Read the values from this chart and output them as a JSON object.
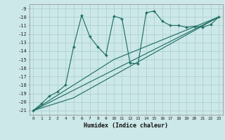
{
  "xlabel": "Humidex (Indice chaleur)",
  "bg_color": "#cce8e8",
  "grid_color": "#aacccc",
  "line_color": "#1a6b60",
  "xlim": [
    -0.5,
    23.5
  ],
  "ylim": [
    -21.5,
    -8.5
  ],
  "xticks": [
    0,
    1,
    2,
    3,
    4,
    5,
    6,
    7,
    8,
    9,
    10,
    11,
    12,
    13,
    14,
    15,
    16,
    17,
    18,
    19,
    20,
    21,
    22,
    23
  ],
  "yticks": [
    -9,
    -10,
    -11,
    -12,
    -13,
    -14,
    -15,
    -16,
    -17,
    -18,
    -19,
    -20,
    -21
  ],
  "series": [
    [
      0,
      -21.0
    ],
    [
      1,
      -20.2
    ],
    [
      2,
      -19.3
    ],
    [
      3,
      -18.8
    ],
    [
      4,
      -18.0
    ],
    [
      5,
      -13.5
    ],
    [
      6,
      -9.8
    ],
    [
      7,
      -12.3
    ],
    [
      8,
      -13.5
    ],
    [
      9,
      -14.5
    ],
    [
      10,
      -9.9
    ],
    [
      11,
      -10.2
    ],
    [
      12,
      -15.4
    ],
    [
      13,
      -15.5
    ],
    [
      14,
      -9.5
    ],
    [
      15,
      -9.3
    ],
    [
      16,
      -10.5
    ],
    [
      17,
      -11.0
    ],
    [
      18,
      -11.0
    ],
    [
      19,
      -11.2
    ],
    [
      20,
      -11.1
    ],
    [
      21,
      -11.2
    ],
    [
      22,
      -10.9
    ],
    [
      23,
      -10.0
    ]
  ],
  "line_straight": [
    [
      0,
      -21.0
    ],
    [
      23,
      -10.0
    ]
  ],
  "line_upper": [
    [
      0,
      -21.0
    ],
    [
      10,
      -15.0
    ],
    [
      23,
      -10.0
    ]
  ],
  "line_lower": [
    [
      0,
      -21.0
    ],
    [
      5,
      -19.5
    ],
    [
      23,
      -10.0
    ]
  ]
}
